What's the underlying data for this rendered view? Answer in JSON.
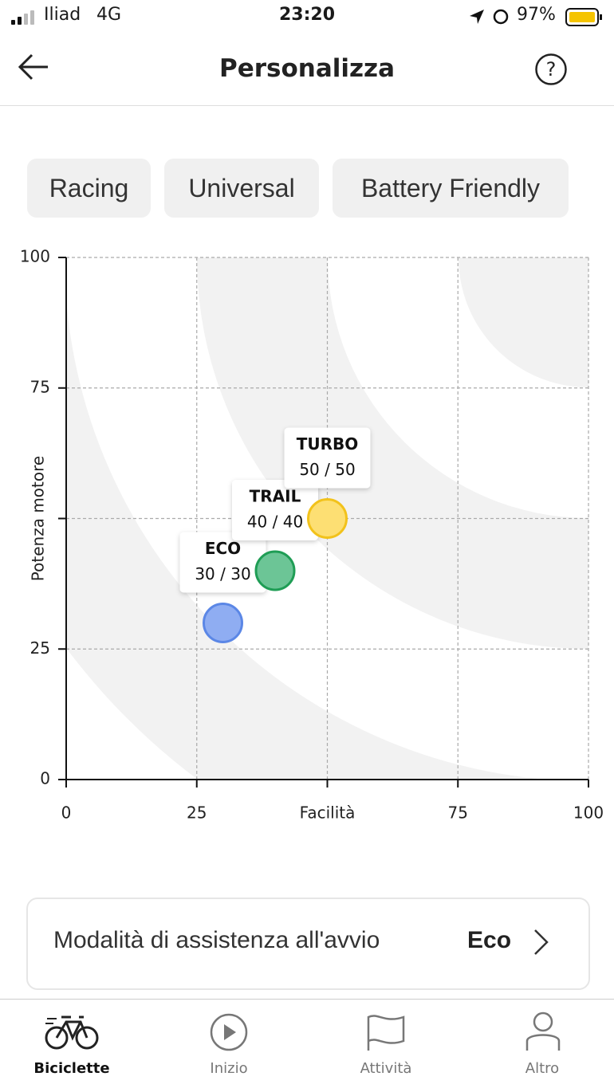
{
  "status_bar": {
    "carrier": "Iliad",
    "network": "4G",
    "time": "23:20",
    "battery": "97%"
  },
  "header": {
    "title": "Personalizza"
  },
  "presets": [
    "Racing",
    "Universal",
    "Battery Friendly"
  ],
  "chart_data": {
    "type": "scatter",
    "xlim": [
      0,
      100
    ],
    "ylim": [
      0,
      100
    ],
    "xticks": [
      0,
      25,
      {
        "value": 50,
        "label": "Facilità"
      },
      75,
      100
    ],
    "yticks": [
      0,
      25,
      {
        "value": 50,
        "label": "Potenza motore"
      },
      75,
      100
    ],
    "grid": true,
    "series": [
      {
        "name": "ECO",
        "color": "#8fadf2",
        "edge": "#5b87e6",
        "x": [
          30
        ],
        "values": [
          30
        ],
        "value_labels": [
          "30 / 30"
        ]
      },
      {
        "name": "TRAIL",
        "color": "#6cc596",
        "edge": "#1f9d55",
        "x": [
          40
        ],
        "values": [
          40
        ],
        "value_labels": [
          "40 / 40"
        ]
      },
      {
        "name": "TURBO",
        "color": "#fddf73",
        "edge": "#f2c21b",
        "x": [
          50
        ],
        "values": [
          50
        ],
        "value_labels": [
          "50 / 50"
        ]
      }
    ]
  },
  "setting": {
    "label": "Modalità di assistenza all'avvio",
    "value": "Eco"
  },
  "tabs": [
    "Biciclette",
    "Inizio",
    "Attività",
    "Altro"
  ]
}
